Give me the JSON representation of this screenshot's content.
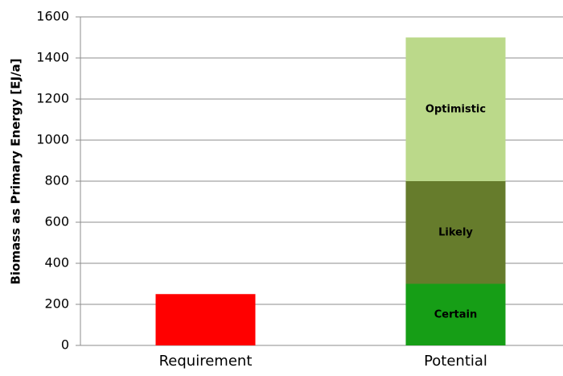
{
  "chart_data": {
    "type": "stacked_bar",
    "y_label": "Biomass as Primary Energy [EJ/a]",
    "categories": [
      "Requirement",
      "Potential"
    ],
    "series": [
      {
        "color": "#ff0000",
        "values": [
          250,
          null
        ]
      },
      {
        "name": "Certain",
        "color": "#169e16",
        "values": [
          null,
          300
        ]
      },
      {
        "name": "Likely",
        "color": "#667c2c",
        "values": [
          null,
          500
        ]
      },
      {
        "name": "Optimistic",
        "color": "#bbd98a",
        "values": [
          null,
          700
        ]
      }
    ],
    "ylim": [
      0,
      1600
    ],
    "yticks": [
      0,
      200,
      400,
      600,
      800,
      1000,
      1200,
      1400,
      1600
    ],
    "grid": true
  }
}
